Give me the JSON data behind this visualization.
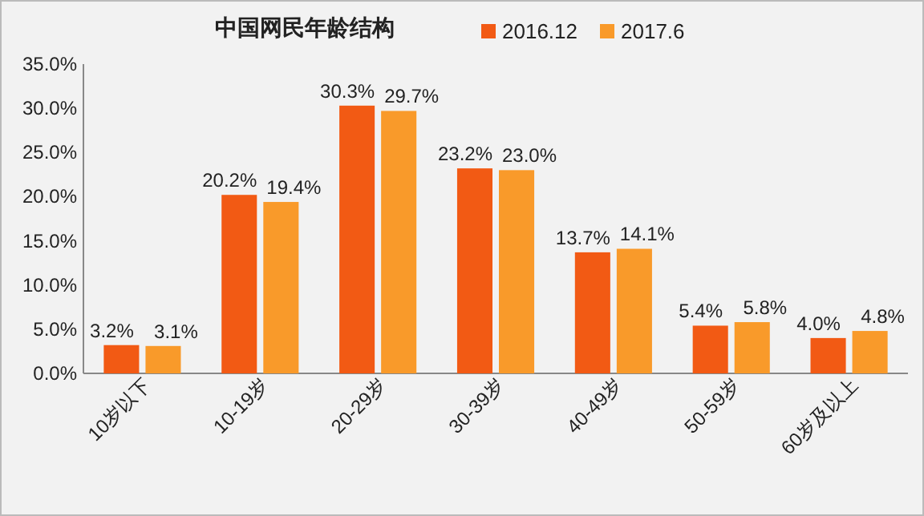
{
  "chart_data": {
    "type": "bar",
    "title": "中国网民年龄结构",
    "categories": [
      "10岁以下",
      "10-19岁",
      "20-29岁",
      "30-39岁",
      "40-49岁",
      "50-59岁",
      "60岁及以上"
    ],
    "series": [
      {
        "name": "2016.12",
        "color": "#f25a14",
        "values": [
          3.2,
          20.2,
          30.3,
          23.2,
          13.7,
          5.4,
          4.0
        ],
        "value_labels": [
          "3.2%",
          "20.2%",
          "30.3%",
          "23.2%",
          "13.7%",
          "5.4%",
          "4.0%"
        ]
      },
      {
        "name": "2017.6",
        "color": "#f99a2a",
        "values": [
          3.1,
          19.4,
          29.7,
          23.0,
          14.1,
          5.8,
          4.8
        ],
        "value_labels": [
          "3.1%",
          "19.4%",
          "29.7%",
          "23.0%",
          "14.1%",
          "5.8%",
          "4.8%"
        ]
      }
    ],
    "ylim": [
      0,
      35
    ],
    "yticks": [
      {
        "value": 0,
        "label": "0.0%"
      },
      {
        "value": 5,
        "label": "5.0%"
      },
      {
        "value": 10,
        "label": "10.0%"
      },
      {
        "value": 15,
        "label": "15.0%"
      },
      {
        "value": 20,
        "label": "20.0%"
      },
      {
        "value": 25,
        "label": "25.0%"
      },
      {
        "value": 30,
        "label": "30.0%"
      },
      {
        "value": 35,
        "label": "35.0%"
      }
    ],
    "grid": false,
    "legend": "top"
  }
}
